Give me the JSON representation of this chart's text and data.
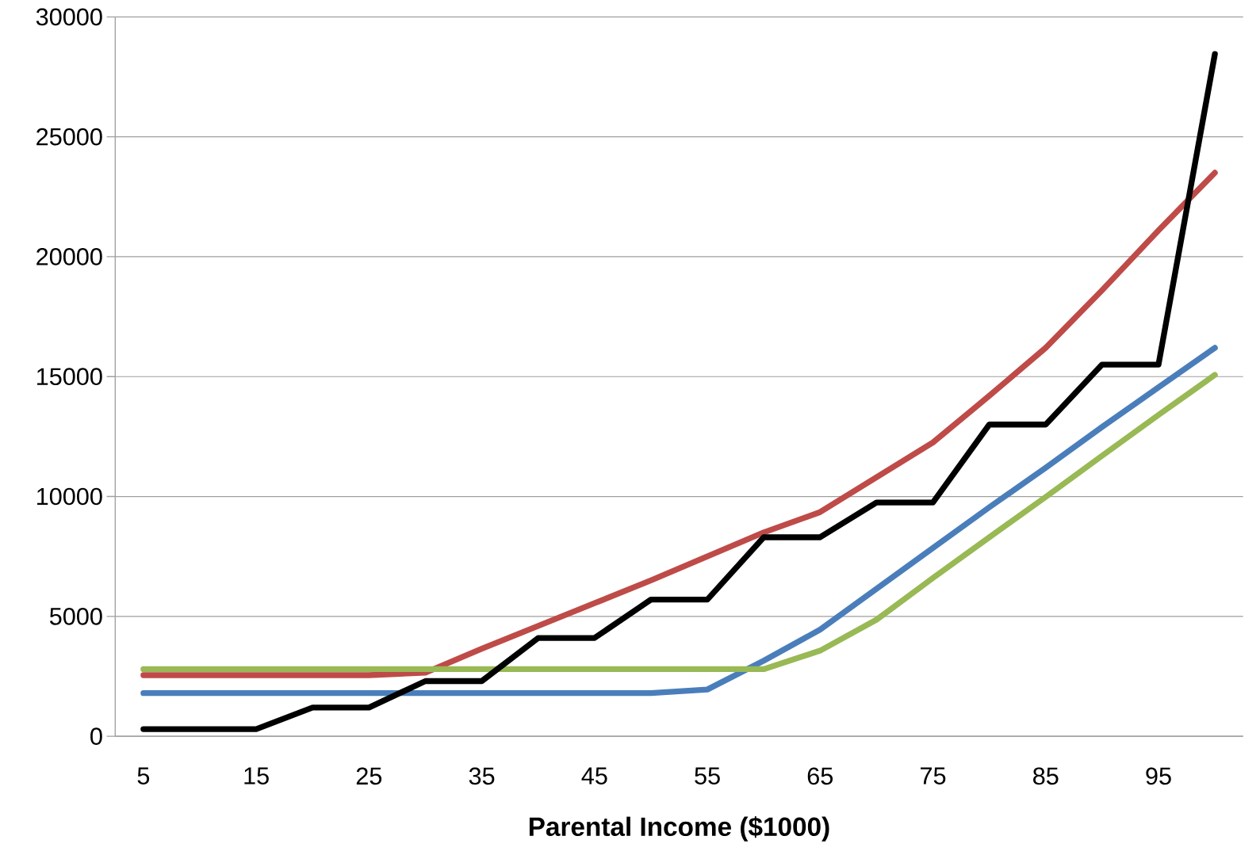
{
  "chart_data": {
    "type": "line",
    "xlabel": "Parental Income ($1000)",
    "categories": [
      "5",
      null,
      "15",
      null,
      "25",
      null,
      "35",
      null,
      "45",
      null,
      "55",
      null,
      "65",
      null,
      "75",
      null,
      "85",
      null,
      "95",
      null
    ],
    "ylim": [
      0,
      30000
    ],
    "yticks": [
      0,
      5000,
      10000,
      15000,
      20000,
      25000,
      30000
    ],
    "grid": "y",
    "series": [
      {
        "color": "#4a7ebb",
        "values": [
          1800,
          1800,
          1800,
          1800,
          1800,
          1800,
          1800,
          1800,
          1800,
          1800,
          1950,
          3150,
          4450,
          6150,
          7850,
          9550,
          11200,
          12900,
          14550,
          16200
        ]
      },
      {
        "color": "#be4b48",
        "values": [
          2550,
          2550,
          2550,
          2550,
          2550,
          2650,
          3650,
          4600,
          5550,
          6500,
          7500,
          8500,
          9350,
          10800,
          12250,
          14200,
          16200,
          18600,
          21100,
          23500
        ]
      },
      {
        "color": "#98b954",
        "values": [
          2800,
          2800,
          2800,
          2800,
          2800,
          2800,
          2800,
          2800,
          2800,
          2800,
          2800,
          2800,
          3570,
          4860,
          6600,
          8300,
          9980,
          11700,
          13400,
          15070
        ]
      },
      {
        "color": "#000000",
        "values": [
          300,
          300,
          300,
          1200,
          1200,
          2300,
          2300,
          4100,
          4100,
          5700,
          5700,
          8300,
          8300,
          9750,
          9750,
          13000,
          13000,
          15500,
          15500,
          28450
        ]
      }
    ]
  }
}
